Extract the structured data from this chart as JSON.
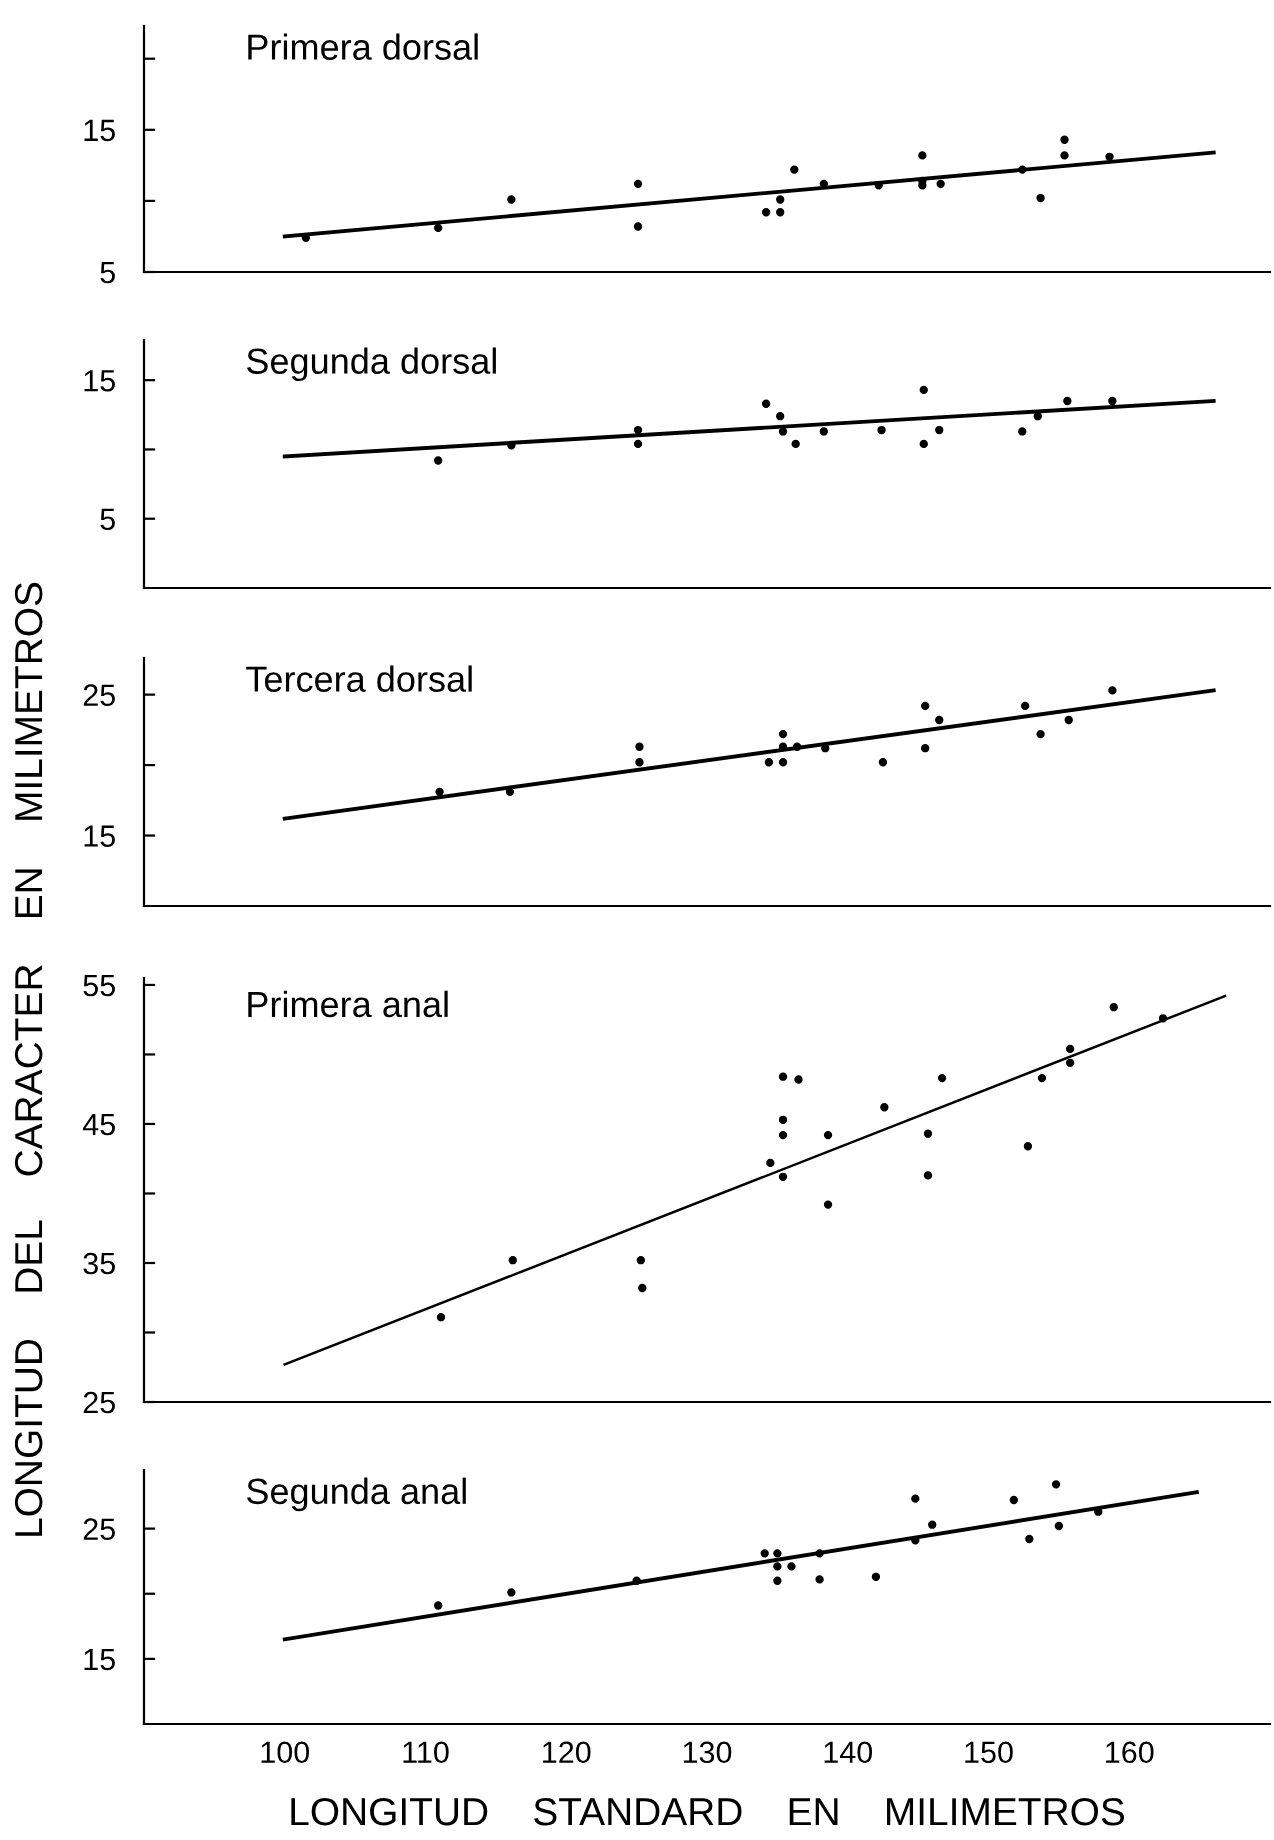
{
  "chart_data": [
    {
      "type": "scatter",
      "title": "Primera dorsal",
      "xlim": [
        90,
        170
      ],
      "ylim": [
        5,
        22.3
      ],
      "yticks": [
        5,
        {
          "value": 10,
          "label": null
        },
        15,
        {
          "value": 20,
          "label": null
        }
      ],
      "tick_labels": "y",
      "series": [
        {
          "marker": "circle",
          "color": "#000000",
          "x": [
            101.5,
            110.9,
            116.1,
            125.1,
            125.1,
            134.2,
            135.2,
            135.2,
            136.2,
            138.3,
            142.2,
            145.3,
            145.3,
            145.3,
            146.6,
            152.4,
            153.7,
            155.4,
            155.4,
            158.6
          ],
          "values": [
            7.4,
            8.1,
            10.1,
            11.2,
            8.2,
            9.2,
            9.2,
            10.1,
            12.2,
            11.2,
            11.1,
            13.2,
            11.4,
            11.1,
            11.2,
            12.2,
            10.2,
            14.3,
            13.2,
            13.1
          ]
        },
        {
          "type": "line",
          "color": "#000000",
          "x": [
            100,
            166
          ],
          "values": [
            7.5,
            13.4
          ]
        }
      ]
    },
    {
      "type": "scatter",
      "title": "Segunda dorsal",
      "xlim": [
        90,
        170
      ],
      "ylim": [
        0,
        17.9
      ],
      "yticks": [
        5,
        {
          "value": 10,
          "label": null
        },
        15
      ],
      "tick_labels": "y",
      "series": [
        {
          "marker": "circle",
          "color": "#000000",
          "x": [
            110.9,
            116.1,
            125.1,
            125.1,
            134.2,
            135.2,
            135.4,
            136.3,
            138.3,
            142.4,
            145.4,
            145.4,
            146.5,
            152.4,
            153.5,
            155.6,
            158.8
          ],
          "values": [
            9.2,
            10.3,
            11.4,
            10.4,
            13.3,
            12.4,
            11.3,
            10.4,
            11.3,
            11.4,
            14.3,
            10.4,
            11.4,
            11.3,
            12.4,
            13.5,
            13.5
          ]
        },
        {
          "type": "line",
          "color": "#000000",
          "x": [
            100,
            166
          ],
          "values": [
            9.5,
            13.5
          ]
        }
      ]
    },
    {
      "type": "scatter",
      "title": "Tercera dorsal",
      "ylabel": "LONGITUD    DEL    CARACTER    EN    MILIMETROS",
      "xlim": [
        90,
        170
      ],
      "ylim": [
        10,
        27.6
      ],
      "yticks": [
        15,
        {
          "value": 20,
          "label": null
        },
        25
      ],
      "tick_labels": "y",
      "series": [
        {
          "marker": "circle",
          "color": "#000000",
          "x": [
            111.0,
            116.0,
            125.2,
            125.2,
            134.4,
            135.4,
            135.4,
            135.4,
            136.4,
            138.4,
            142.5,
            145.5,
            145.5,
            146.5,
            152.6,
            153.7,
            155.7,
            158.8
          ],
          "values": [
            18.1,
            18.1,
            21.3,
            20.2,
            20.2,
            22.2,
            21.3,
            20.2,
            21.3,
            21.2,
            20.2,
            24.2,
            21.2,
            23.2,
            24.2,
            22.2,
            23.2,
            25.3
          ]
        },
        {
          "type": "line",
          "color": "#000000",
          "x": [
            100,
            166
          ],
          "values": [
            16.2,
            25.3
          ]
        }
      ]
    },
    {
      "type": "scatter",
      "title": "Primera anal",
      "xlim": [
        90,
        170
      ],
      "ylim": [
        25,
        55.5
      ],
      "yticks": [
        25,
        {
          "value": 30,
          "label": null
        },
        35,
        {
          "value": 40,
          "label": null
        },
        45,
        {
          "value": 50,
          "label": null
        },
        55
      ],
      "tick_labels": "y",
      "series": [
        {
          "marker": "circle",
          "color": "#000000",
          "x": [
            111.1,
            116.2,
            125.3,
            125.4,
            134.5,
            135.4,
            135.4,
            135.4,
            135.4,
            136.5,
            138.6,
            138.6,
            142.6,
            145.7,
            145.7,
            146.7,
            152.8,
            153.8,
            155.8,
            155.8,
            158.9,
            162.4
          ],
          "values": [
            31.1,
            35.2,
            35.2,
            33.2,
            42.2,
            48.4,
            45.3,
            44.2,
            41.2,
            48.2,
            44.2,
            39.2,
            46.2,
            44.3,
            41.3,
            48.3,
            43.4,
            48.3,
            50.4,
            49.4,
            53.4,
            52.6
          ]
        },
        {
          "type": "line",
          "color": "#000000",
          "x": [
            100,
            166.8
          ],
          "values": [
            27.7,
            54.2
          ]
        }
      ]
    },
    {
      "type": "scatter",
      "title": "Segunda anal",
      "xlabel": "LONGITUD    STANDARD    EN    MILIMETROS",
      "xlim": [
        90,
        170
      ],
      "xticks": [
        100,
        110,
        120,
        130,
        140,
        150,
        160
      ],
      "ylim": [
        10,
        29.5
      ],
      "yticks": [
        15,
        {
          "value": 20,
          "label": null
        },
        25
      ],
      "series": [
        {
          "marker": "circle",
          "color": "#000000",
          "x": [
            110.9,
            116.1,
            125.0,
            134.1,
            135.0,
            135.0,
            135.0,
            136.0,
            138.0,
            138.0,
            142.0,
            144.8,
            144.8,
            146.0,
            151.8,
            152.9,
            154.8,
            155.0,
            157.8
          ],
          "values": [
            19.1,
            20.1,
            21.0,
            23.1,
            23.1,
            22.1,
            21.0,
            22.1,
            23.1,
            21.1,
            21.3,
            27.3,
            24.1,
            25.3,
            27.2,
            24.2,
            28.4,
            25.2,
            26.3
          ]
        },
        {
          "type": "line",
          "color": "#000000",
          "x": [
            100,
            164.8
          ],
          "values": [
            16.5,
            27.8
          ]
        }
      ]
    }
  ]
}
